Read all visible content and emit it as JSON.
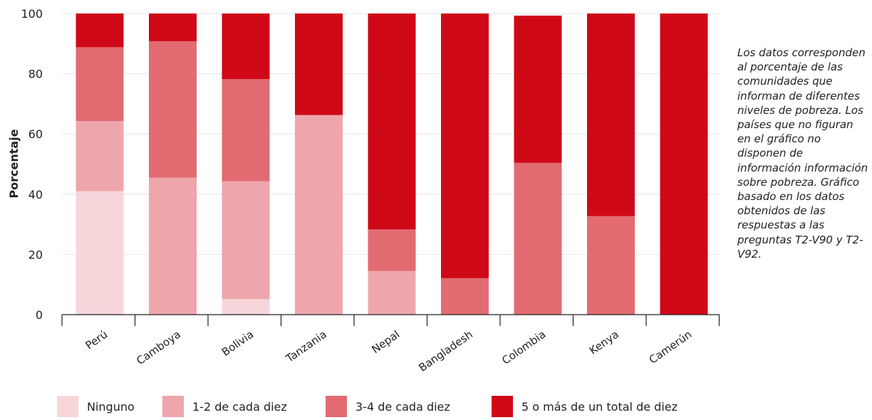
{
  "chart_data": {
    "type": "bar",
    "stacked": true,
    "categories": [
      "Perú",
      "Camboya",
      "Bolivia",
      "Tanzania",
      "Nepal",
      "Bangladesh",
      "Colombia",
      "Kenya",
      "Camerún"
    ],
    "series": [
      {
        "name": "Ninguno",
        "color": "#f7d6da",
        "values": [
          41,
          0,
          5.2,
          0,
          0,
          0,
          0,
          0,
          0
        ]
      },
      {
        "name": "1-2 de cada diez",
        "color": "#eea6ac",
        "values": [
          23.3,
          45.5,
          39.1,
          66.3,
          14.5,
          0,
          0,
          0,
          0
        ]
      },
      {
        "name": "3-4 de cada diez",
        "color": "#e26b72",
        "values": [
          24.5,
          45.3,
          33.9,
          0,
          13.8,
          12.1,
          50.4,
          32.7,
          0
        ]
      },
      {
        "name": "5 o más de un total de diez",
        "color": "#cf0817",
        "values": [
          11.2,
          9.2,
          21.8,
          33.7,
          71.7,
          87.9,
          48.9,
          67.3,
          100
        ]
      }
    ],
    "ylabel": "Porcentaje",
    "xlabel": "",
    "ylim": [
      0,
      100
    ],
    "yticks": [
      0,
      20,
      40,
      60,
      80,
      100
    ],
    "grid": true,
    "legend_position": "bottom"
  },
  "note": "Los datos corresponden al porcentaje de las comunidades que informan de diferentes niveles de pobreza. Los países que no figuran en el gráfico no disponen de información información sobre pobreza. Gráfico basado en los datos obtenidos de las respuestas a las preguntas  T2-V90 y T2-V92."
}
